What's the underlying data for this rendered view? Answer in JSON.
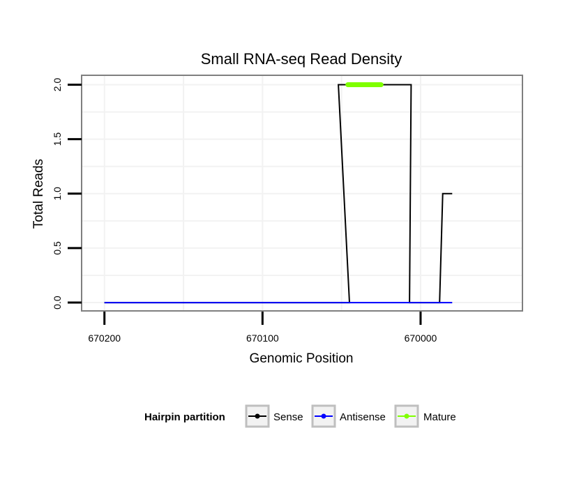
{
  "chart_data": {
    "type": "line",
    "title": "Small RNA-seq Read Density",
    "xlabel": "Genomic Position",
    "ylabel": "Total Reads",
    "x_reversed": true,
    "xlim": [
      670214,
      669936
    ],
    "ylim": [
      -0.07,
      2.08
    ],
    "x_ticks": [
      670200,
      670100,
      670000
    ],
    "x_tick_labels": [
      "670200",
      "670100",
      "670000"
    ],
    "y_ticks": [
      0.0,
      0.5,
      1.0,
      1.5,
      2.0
    ],
    "y_tick_labels": [
      "0.0",
      "0.5",
      "1.0",
      "1.5",
      "2.0"
    ],
    "grid": true,
    "legend": {
      "title": "Hairpin partition",
      "position": "bottom",
      "entries": [
        {
          "name": "Sense",
          "color": "#000000"
        },
        {
          "name": "Antisense",
          "color": "#0000ff"
        },
        {
          "name": "Mature",
          "color": "#7fff00"
        }
      ]
    },
    "series": [
      {
        "name": "Sense",
        "color": "#000000",
        "x": [
          670200,
          670072,
          670070,
          670045,
          670052,
          670006,
          670007,
          669988,
          669986,
          669980
        ],
        "y": [
          0,
          0,
          0,
          0,
          2,
          2,
          0,
          0,
          1,
          1
        ]
      },
      {
        "name": "Antisense",
        "color": "#0000ff",
        "x": [
          670200,
          669980
        ],
        "y": [
          0,
          0
        ]
      },
      {
        "name": "Mature",
        "color": "#7fff00",
        "x": [
          670046,
          670025
        ],
        "y": [
          2,
          2
        ]
      }
    ]
  }
}
